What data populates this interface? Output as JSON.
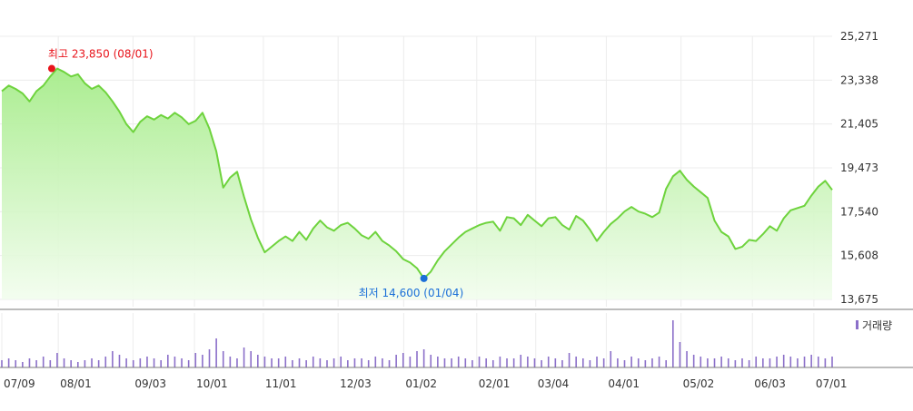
{
  "chart_data": {
    "type": "line",
    "y_ticks": [
      "25,271",
      "23,338",
      "21,405",
      "19,473",
      "17,540",
      "15,608",
      "13,675"
    ],
    "y_tick_values": [
      25271,
      23338,
      21405,
      19473,
      17540,
      15608,
      13675
    ],
    "ylim": [
      13675,
      25271
    ],
    "x_ticks": [
      "07/09",
      "08/01",
      "09/03",
      "10/01",
      "11/01",
      "12/03",
      "01/02",
      "02/01",
      "03/04",
      "04/01",
      "05/02",
      "06/03",
      "07/01"
    ],
    "annotations": {
      "high_label": "최고 23,850 (08/01)",
      "high_value": 23850,
      "low_label": "최저 14,600 (01/04)",
      "low_value": 14600
    },
    "volume_legend": "거래량",
    "colors": {
      "line": "#6ed33d",
      "area_top": "#a6ec8a",
      "area_bottom": "#f2fdee",
      "high": "#e8141b",
      "low": "#1b6fd8",
      "volume": "#8b6fc9"
    },
    "series": [
      {
        "values": [
          22850,
          23100,
          22950,
          22750,
          22400,
          22850,
          23100,
          23500,
          23850,
          23700,
          23500,
          23600,
          23200,
          22950,
          23100,
          22800,
          22400,
          21950,
          21400,
          21050,
          21500,
          21750,
          21600,
          21800,
          21650,
          21900,
          21700,
          21400,
          21550,
          21900,
          21200,
          20200,
          18600,
          19050,
          19300,
          18200,
          17200,
          16400,
          15750,
          16000,
          16250,
          16450,
          16250,
          16650,
          16300,
          16800,
          17150,
          16850,
          16700,
          16950,
          17050,
          16800,
          16500,
          16350,
          16650,
          16250,
          16050,
          15800,
          15450,
          15300,
          15050,
          14600,
          14900,
          15400,
          15800,
          16100,
          16400,
          16650,
          16800,
          16950,
          17050,
          17100,
          16700,
          17300,
          17250,
          16950,
          17400,
          17150,
          16900,
          17250,
          17300,
          16950,
          16750,
          17350,
          17150,
          16750,
          16250,
          16650,
          17000,
          17250,
          17550,
          17750,
          17550,
          17450,
          17300,
          17500,
          18550,
          19100,
          19350,
          18950,
          18650,
          18400,
          18150,
          17150,
          16650,
          16450,
          15900,
          16000,
          16300,
          16250,
          16550,
          16900,
          16700,
          17250,
          17600,
          17700,
          17800,
          18250,
          18650,
          18900,
          18500
        ],
        "volume": [
          4,
          5,
          4,
          3,
          5,
          4,
          6,
          4,
          8,
          5,
          4,
          3,
          4,
          5,
          4,
          6,
          9,
          7,
          5,
          4,
          5,
          6,
          5,
          4,
          7,
          6,
          5,
          4,
          8,
          7,
          10,
          16,
          9,
          6,
          5,
          11,
          9,
          7,
          6,
          5,
          5,
          6,
          4,
          5,
          4,
          6,
          5,
          4,
          5,
          6,
          4,
          5,
          5,
          4,
          6,
          5,
          4,
          7,
          8,
          6,
          9,
          10,
          7,
          6,
          5,
          5,
          6,
          5,
          4,
          6,
          5,
          4,
          6,
          5,
          5,
          7,
          6,
          5,
          4,
          6,
          5,
          4,
          8,
          6,
          5,
          4,
          6,
          5,
          9,
          5,
          4,
          6,
          5,
          4,
          5,
          6,
          4,
          26,
          14,
          9,
          7,
          6,
          5,
          5,
          6,
          5,
          4,
          5,
          4,
          6,
          5,
          5,
          6,
          7,
          6,
          5,
          6,
          7,
          6,
          5,
          6
        ]
      }
    ]
  }
}
